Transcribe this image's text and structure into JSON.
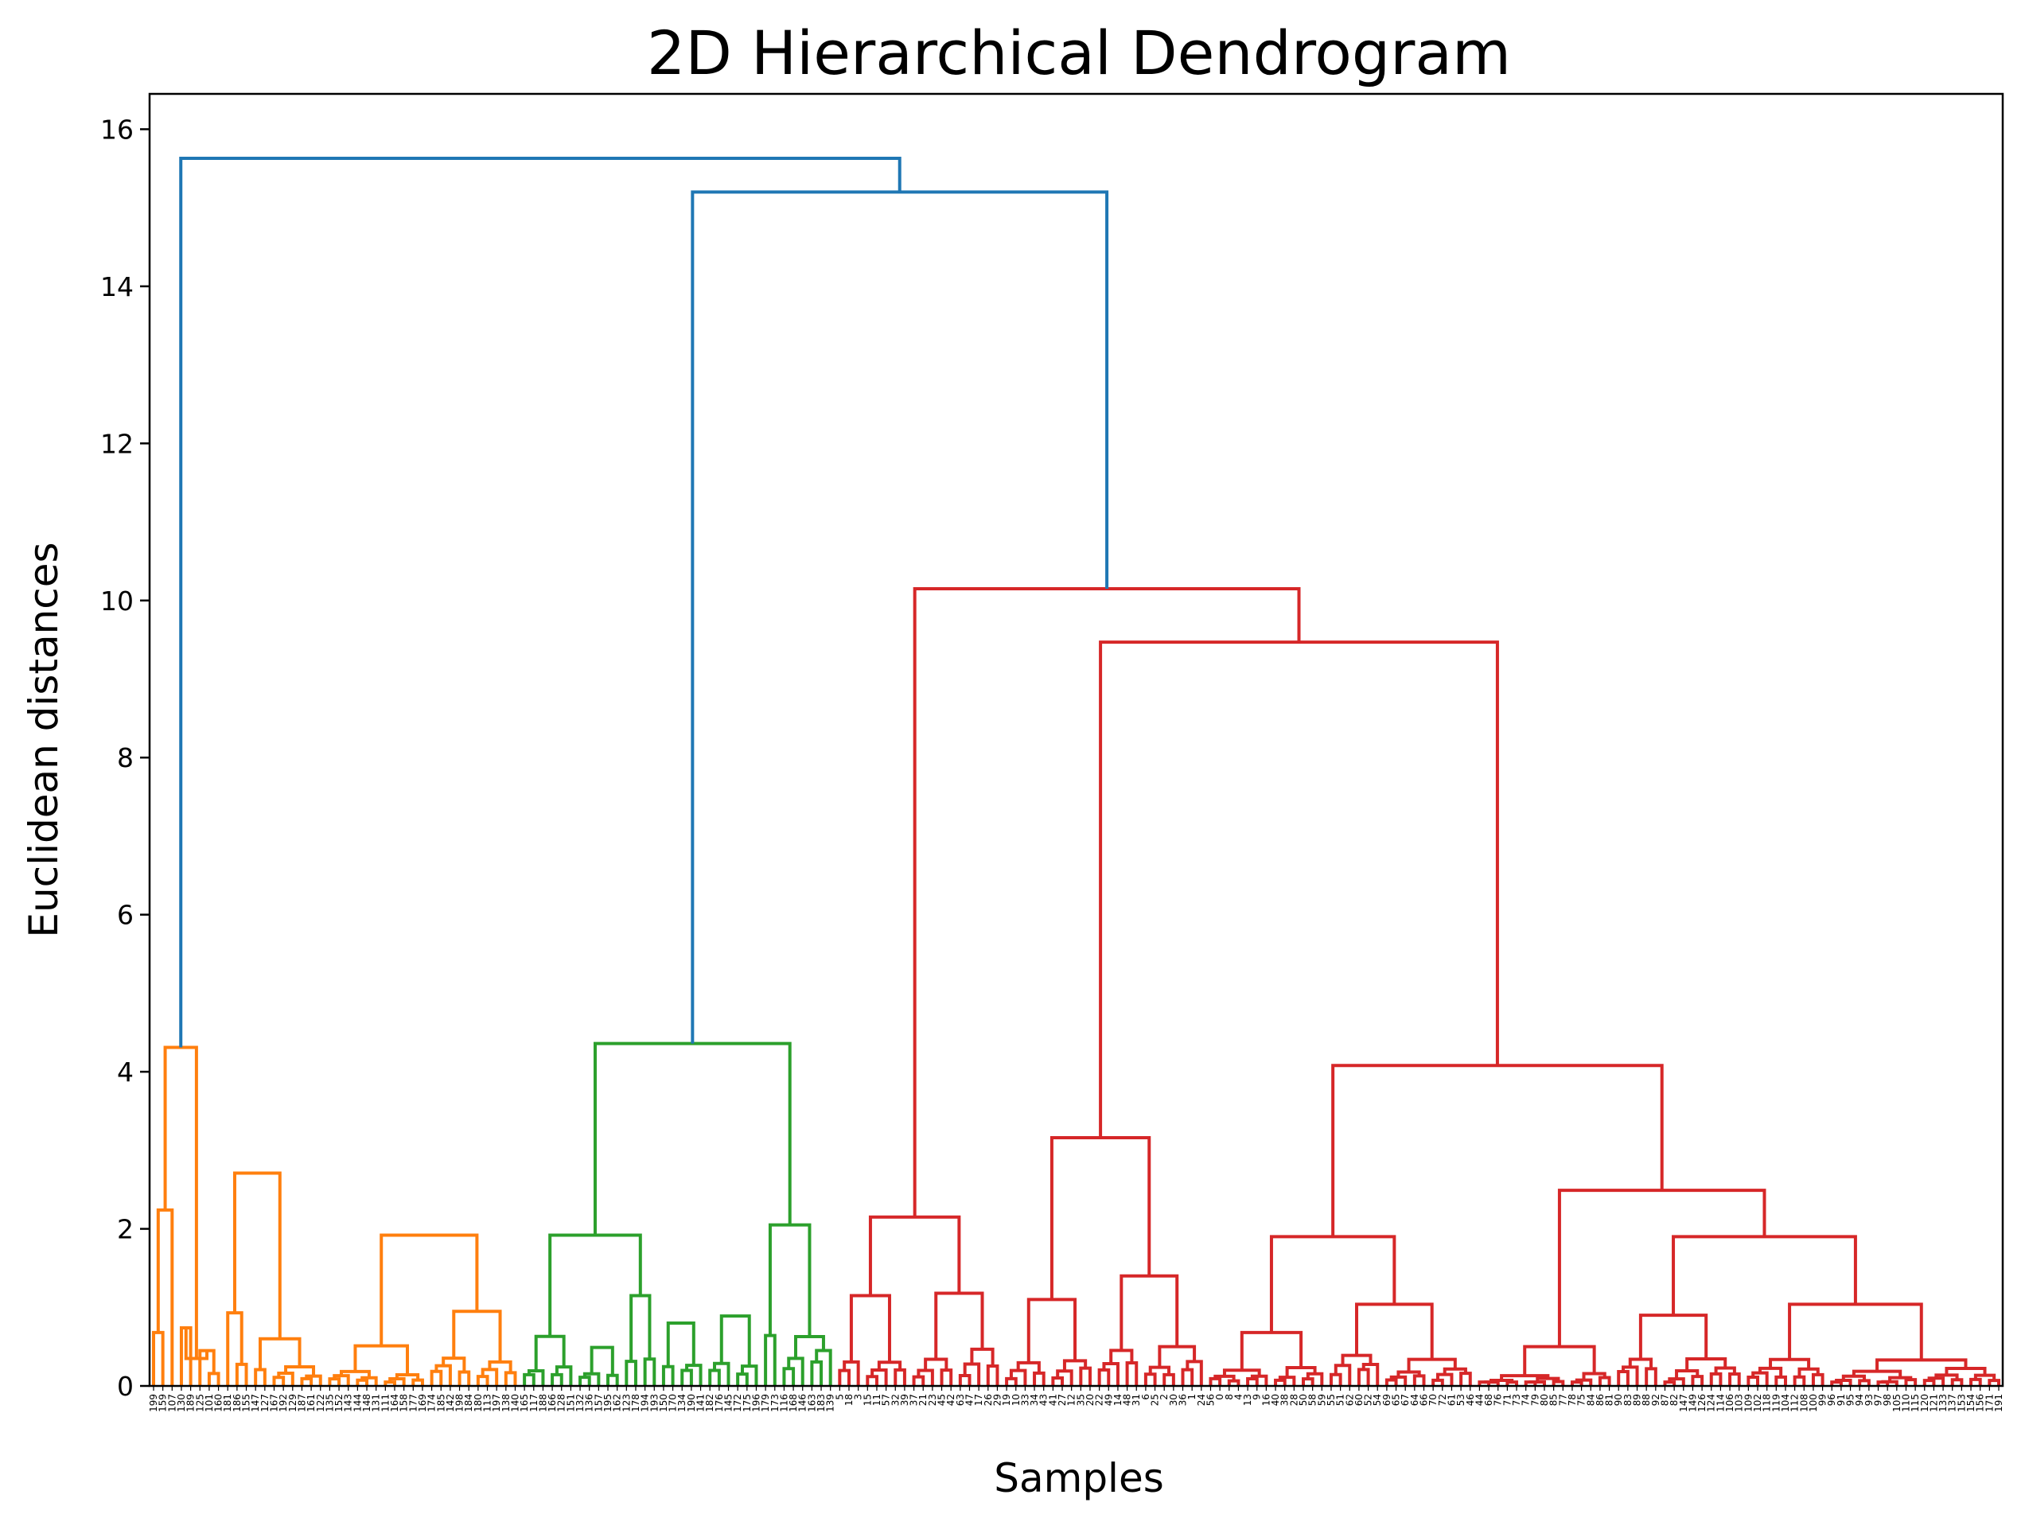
{
  "chart_data": {
    "type": "dendrogram",
    "title": "2D Hierarchical Dendrogram",
    "xlabel": "Samples",
    "ylabel": "Euclidean distances",
    "ylim": [
      0,
      16.45
    ],
    "yticks": [
      "0",
      "2",
      "4",
      "6",
      "8",
      "10",
      "12",
      "14",
      "16"
    ],
    "grid": false,
    "leaf_count": 200,
    "colors": {
      "link": "#1f77b4",
      "cluster_1": "#ff7f0e",
      "cluster_2": "#2ca02c",
      "cluster_3": "#d62728"
    },
    "clusters": [
      {
        "name": "cluster_1",
        "color": "#ff7f0e",
        "leaf_start": 0,
        "leaf_count": 40,
        "merge_height": 4.31
      },
      {
        "name": "cluster_2",
        "color": "#2ca02c",
        "leaf_start": 40,
        "leaf_count": 34,
        "merge_height": 4.36
      },
      {
        "name": "cluster_3",
        "color": "#d62728",
        "leaf_start": 74,
        "leaf_count": 126,
        "merge_height": 10.15
      }
    ],
    "top_links": [
      {
        "left": "cluster_2",
        "right": "cluster_3",
        "height": 15.2
      },
      {
        "left": "cluster_1",
        "right": "link_1",
        "height": 15.63
      }
    ],
    "merges": [
      {
        "id": "o_a",
        "left": "L0",
        "right": "L1",
        "height": 0.68,
        "color": "cluster_1"
      },
      {
        "id": "o_b",
        "left": "L2",
        "right": "o_a",
        "height": 2.24,
        "color": "cluster_1"
      },
      {
        "id": "o_c",
        "left": "L3",
        "right": "L4",
        "height": 0.74,
        "color": "cluster_1"
      },
      {
        "id": "o_d",
        "left": "L5",
        "right": "L6",
        "height": 0.45,
        "color": "cluster_1"
      },
      {
        "id": "o_e",
        "left": "o_c",
        "right": "o_d",
        "height": 0.35,
        "color": "cluster_1"
      },
      {
        "id": "o_f",
        "left": "o_b",
        "right": "o_e",
        "height": 4.31,
        "color": "cluster_1"
      },
      {
        "id": "o_g",
        "left": "L8",
        "right": "L9",
        "height": 0.93,
        "color": "cluster_1"
      },
      {
        "id": "o_h",
        "left": "L12",
        "right": "L13",
        "height": 0.6,
        "color": "cluster_1"
      },
      {
        "id": "o_i",
        "left": "o_g",
        "right": "o_h",
        "height": 2.71,
        "color": "cluster_1"
      },
      {
        "id": "o_j",
        "left": "L24",
        "right": "L25",
        "height": 0.51,
        "color": "cluster_1"
      },
      {
        "id": "o_k",
        "left": "L34",
        "right": "L35",
        "height": 0.95,
        "color": "cluster_1"
      },
      {
        "id": "o_l",
        "left": "o_j",
        "right": "o_k",
        "height": 1.92,
        "color": "cluster_1"
      },
      {
        "id": "g_a",
        "left": "L42",
        "right": "L43",
        "height": 0.63,
        "color": "cluster_2"
      },
      {
        "id": "g_b",
        "left": "L48",
        "right": "L49",
        "height": 0.49,
        "color": "cluster_2"
      },
      {
        "id": "g_c",
        "left": "L52",
        "right": "L53",
        "height": 1.15,
        "color": "cluster_2"
      },
      {
        "id": "g_d",
        "left": "g_a",
        "right": "g_c",
        "height": 1.92,
        "color": "cluster_2"
      },
      {
        "id": "g_e",
        "left": "L56",
        "right": "L57",
        "height": 0.8,
        "color": "cluster_2"
      },
      {
        "id": "g_f",
        "left": "L62",
        "right": "L63",
        "height": 0.89,
        "color": "cluster_2"
      },
      {
        "id": "g_g",
        "left": "L67",
        "right": "L68",
        "height": 2.05,
        "color": "cluster_2"
      },
      {
        "id": "g_h",
        "left": "g_d",
        "right": "g_g",
        "height": 4.36,
        "color": "cluster_2"
      },
      {
        "id": "r_a",
        "left": "L76",
        "right": "L77",
        "height": 1.15,
        "color": "cluster_3"
      },
      {
        "id": "r_b",
        "left": "L86",
        "right": "L87",
        "height": 1.18,
        "color": "cluster_3"
      },
      {
        "id": "r_c",
        "left": "r_a",
        "right": "r_b",
        "height": 2.15,
        "color": "cluster_3"
      },
      {
        "id": "r_d",
        "left": "L96",
        "right": "L97",
        "height": 1.1,
        "color": "cluster_3"
      },
      {
        "id": "r_e",
        "left": "L106",
        "right": "L107",
        "height": 1.4,
        "color": "cluster_3"
      },
      {
        "id": "r_f",
        "left": "r_d",
        "right": "r_e",
        "height": 3.16,
        "color": "cluster_3"
      },
      {
        "id": "r_g",
        "left": "L120",
        "right": "L121",
        "height": 0.68,
        "color": "cluster_3"
      },
      {
        "id": "r_h",
        "left": "L132",
        "right": "L133",
        "height": 1.04,
        "color": "cluster_3"
      },
      {
        "id": "r_i",
        "left": "r_g",
        "right": "r_h",
        "height": 1.9,
        "color": "cluster_3"
      },
      {
        "id": "r_j",
        "left": "L152",
        "right": "L153",
        "height": 0.5,
        "color": "cluster_3"
      },
      {
        "id": "r_k",
        "left": "L162",
        "right": "L163",
        "height": 0.9,
        "color": "cluster_3"
      },
      {
        "id": "r_l",
        "left": "L180",
        "right": "L181",
        "height": 1.04,
        "color": "cluster_3"
      },
      {
        "id": "r_m",
        "left": "r_k",
        "right": "r_l",
        "height": 1.9,
        "color": "cluster_3"
      },
      {
        "id": "r_n",
        "left": "r_j",
        "right": "r_m",
        "height": 2.49,
        "color": "cluster_3"
      },
      {
        "id": "r_o",
        "left": "r_i",
        "right": "r_n",
        "height": 4.08,
        "color": "cluster_3"
      },
      {
        "id": "r_p",
        "left": "r_f",
        "right": "r_o",
        "height": 9.47,
        "color": "cluster_3"
      },
      {
        "id": "r_q",
        "left": "r_c",
        "right": "r_p",
        "height": 10.15,
        "color": "cluster_3"
      }
    ],
    "leaves": [
      "199",
      "159",
      "107",
      "130",
      "189",
      "125",
      "101",
      "160",
      "181",
      "186",
      "155",
      "147",
      "127",
      "167",
      "192",
      "129",
      "187",
      "161",
      "122",
      "135",
      "152",
      "143",
      "144",
      "148",
      "131",
      "111",
      "164",
      "158",
      "177",
      "169",
      "174",
      "185",
      "142",
      "198",
      "184",
      "180",
      "113",
      "197",
      "138",
      "140",
      "165",
      "117",
      "188",
      "166",
      "128",
      "151",
      "132",
      "136",
      "157",
      "195",
      "162",
      "123",
      "178",
      "194",
      "193",
      "150",
      "170",
      "134",
      "190",
      "141",
      "182",
      "176",
      "145",
      "172",
      "175",
      "196",
      "179",
      "173",
      "116",
      "168",
      "146",
      "163",
      "183",
      "139",
      "5",
      "18",
      "3",
      "15",
      "11",
      "57",
      "32",
      "39",
      "37",
      "21",
      "23",
      "45",
      "42",
      "63",
      "47",
      "17",
      "26",
      "29",
      "19",
      "10",
      "33",
      "34",
      "43",
      "41",
      "27",
      "12",
      "35",
      "20",
      "22",
      "49",
      "14",
      "48",
      "31",
      "6",
      "25",
      "2",
      "30",
      "36",
      "1",
      "24",
      "56",
      "0",
      "8",
      "4",
      "13",
      "9",
      "16",
      "40",
      "38",
      "28",
      "50",
      "58",
      "59",
      "55",
      "51",
      "62",
      "60",
      "52",
      "54",
      "69",
      "65",
      "67",
      "64",
      "66",
      "70",
      "72",
      "61",
      "53",
      "46",
      "44",
      "68",
      "76",
      "71",
      "73",
      "74",
      "79",
      "80",
      "85",
      "77",
      "78",
      "75",
      "84",
      "86",
      "81",
      "90",
      "83",
      "89",
      "88",
      "92",
      "87",
      "82",
      "147",
      "149",
      "126",
      "124",
      "114",
      "106",
      "103",
      "109",
      "102",
      "118",
      "119",
      "104",
      "112",
      "108",
      "100",
      "99",
      "96",
      "91",
      "95",
      "94",
      "93",
      "97",
      "98",
      "105",
      "110",
      "115",
      "120",
      "121",
      "133",
      "137",
      "153",
      "154",
      "156",
      "171",
      "191"
    ]
  }
}
